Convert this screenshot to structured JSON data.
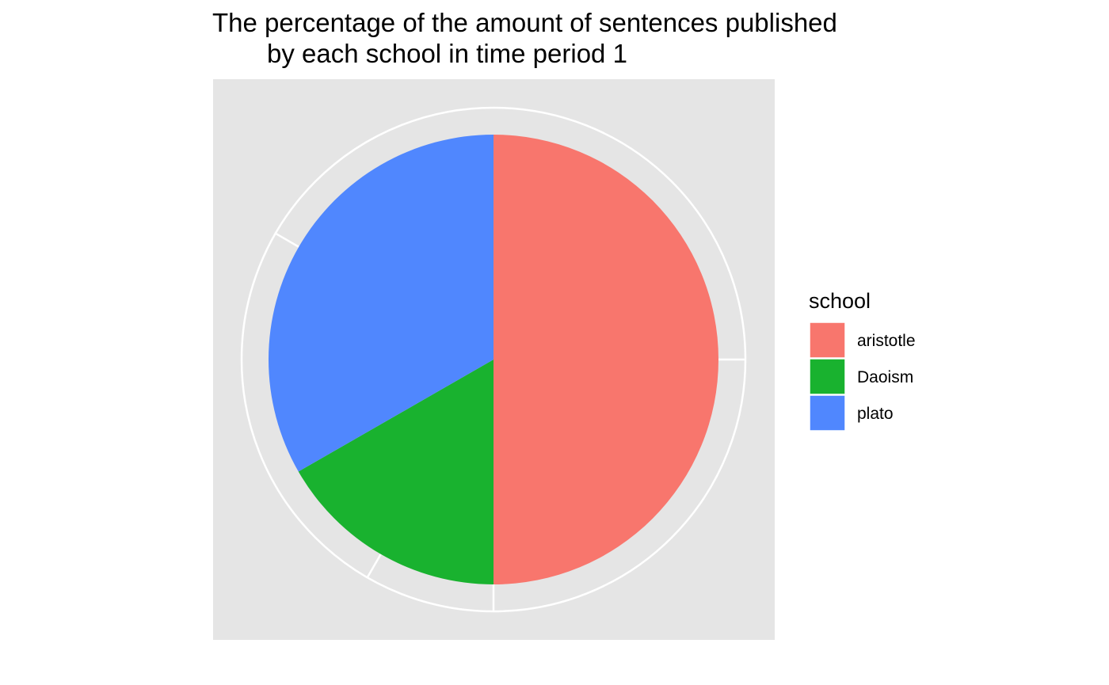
{
  "chart_data": {
    "type": "pie",
    "title": "The percentage of the amount of sentences published\nby each school in time period 1",
    "title_lines": [
      "The percentage of the amount of sentences published",
      "by each school in time period 1"
    ],
    "legend": {
      "title": "school",
      "position": "right"
    },
    "categories": [
      "aristotle",
      "Daoism",
      "plato"
    ],
    "values": [
      50.0,
      16.7,
      33.3
    ],
    "unit": "percent",
    "colors": [
      "#f8766d",
      "#19b22f",
      "#5087fe"
    ],
    "panel_background": "#e5e5e5",
    "grid": true
  }
}
